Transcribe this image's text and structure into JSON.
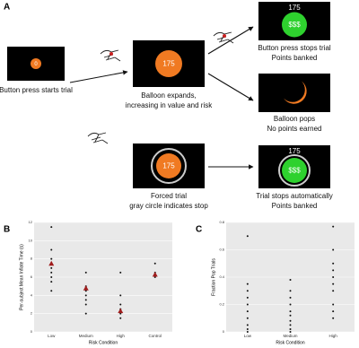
{
  "diagram": {
    "panel_label": "A",
    "screens": [
      {
        "text": "0"
      },
      {
        "text": "175"
      },
      {
        "top": "175",
        "text": "$$$"
      },
      {},
      {
        "text": "175"
      },
      {
        "top": "175",
        "text": "$$$"
      }
    ],
    "captions": [
      [
        "Button press starts trial"
      ],
      [
        "Balloon expands,",
        "increasing in value and risk"
      ],
      [
        "Button press stops trial",
        "Points banked"
      ],
      [
        "Balloon pops",
        "No points earned"
      ],
      [
        "Forced trial",
        "gray circle indicates stop"
      ],
      [
        "Trial stops automatically",
        "Points banked"
      ]
    ]
  },
  "chart_data": [
    {
      "type": "scatter",
      "panel_label": "B",
      "y_label": "Per-subject Mean Inflate Time (s)",
      "x_label": "Risk Condition",
      "categories": [
        "Low",
        "Medium",
        "High",
        "Control"
      ],
      "points": [
        [
          11.5,
          9,
          8,
          7.5,
          7,
          6.5,
          6,
          5.5,
          4.5
        ],
        [
          6.5,
          5,
          4.5,
          4,
          3.5,
          3,
          2
        ],
        [
          6.5,
          4,
          3,
          2.5,
          2,
          1.5
        ],
        [
          7.5,
          6.5,
          6.2,
          6
        ]
      ],
      "means": [
        7.5,
        4.8,
        2.3,
        6.3
      ],
      "point_color": "#111111",
      "mean_color": "#a01c1c",
      "ylim": [
        0,
        12
      ],
      "yticks": [
        0,
        2,
        4,
        6,
        8,
        10,
        12
      ]
    },
    {
      "type": "scatter",
      "panel_label": "C",
      "y_label": "Fraction Pop Trials",
      "x_label": "Risk Condition",
      "categories": [
        "Low",
        "Medium",
        "High"
      ],
      "points": [
        [
          0.7,
          0.35,
          0.3,
          0.25,
          0.2,
          0.15,
          0.1,
          0.05,
          0.02,
          0
        ],
        [
          0.38,
          0.3,
          0.25,
          0.2,
          0.15,
          0.12,
          0.08,
          0.05,
          0.02,
          0
        ],
        [
          0.77,
          0.6,
          0.5,
          0.45,
          0.4,
          0.35,
          0.3,
          0.2,
          0.15,
          0.1
        ]
      ],
      "point_color": "#111111",
      "ylim": [
        0,
        0.8
      ],
      "yticks": [
        0,
        0.2,
        0.4,
        0.6,
        0.8
      ]
    }
  ]
}
